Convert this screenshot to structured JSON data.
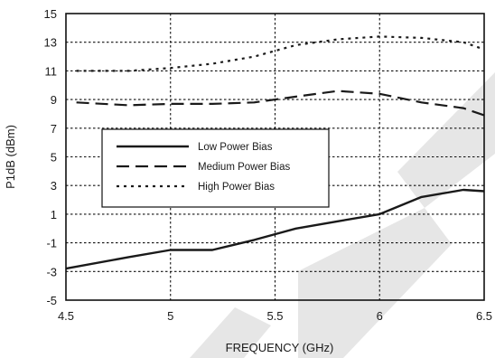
{
  "chart_data": {
    "type": "line",
    "title": "",
    "xlabel": "FREQUENCY (GHz)",
    "ylabel": "P1dB (dBm)",
    "xlim": [
      4.5,
      6.5
    ],
    "ylim": [
      -5,
      15
    ],
    "xticks": [
      4.5,
      5,
      5.5,
      6,
      6.5
    ],
    "xtick_labels": [
      "4.5",
      "5",
      "5.5",
      "6",
      "6.5"
    ],
    "yticks": [
      -5,
      -3,
      -1,
      1,
      3,
      5,
      7,
      9,
      11,
      13,
      15
    ],
    "ytick_labels": [
      "-5",
      "-3",
      "-1",
      "1",
      "3",
      "5",
      "7",
      "9",
      "11",
      "13",
      "15"
    ],
    "grid": true,
    "legend_position": "center-left",
    "series": [
      {
        "name": "Low Power Bias",
        "style": "solid",
        "color": "#1a1a1a",
        "x": [
          4.5,
          4.8,
          5.0,
          5.2,
          5.4,
          5.6,
          5.8,
          6.0,
          6.2,
          6.4,
          6.5
        ],
        "y": [
          -2.8,
          -2.0,
          -1.5,
          -1.5,
          -0.8,
          0.0,
          0.5,
          1.0,
          2.2,
          2.7,
          2.6
        ]
      },
      {
        "name": "Medium Power Bias",
        "style": "long-dash",
        "color": "#1a1a1a",
        "x": [
          4.55,
          4.8,
          5.0,
          5.2,
          5.4,
          5.6,
          5.8,
          6.0,
          6.2,
          6.4,
          6.5
        ],
        "y": [
          8.8,
          8.6,
          8.7,
          8.7,
          8.8,
          9.2,
          9.6,
          9.4,
          8.8,
          8.4,
          7.9
        ]
      },
      {
        "name": "High Power Bias",
        "style": "dotted",
        "color": "#1a1a1a",
        "x": [
          4.55,
          4.8,
          5.0,
          5.2,
          5.4,
          5.6,
          5.8,
          6.0,
          6.2,
          6.4,
          6.5
        ],
        "y": [
          11.0,
          11.0,
          11.2,
          11.5,
          12.0,
          12.8,
          13.2,
          13.4,
          13.3,
          13.0,
          12.5
        ]
      }
    ]
  }
}
